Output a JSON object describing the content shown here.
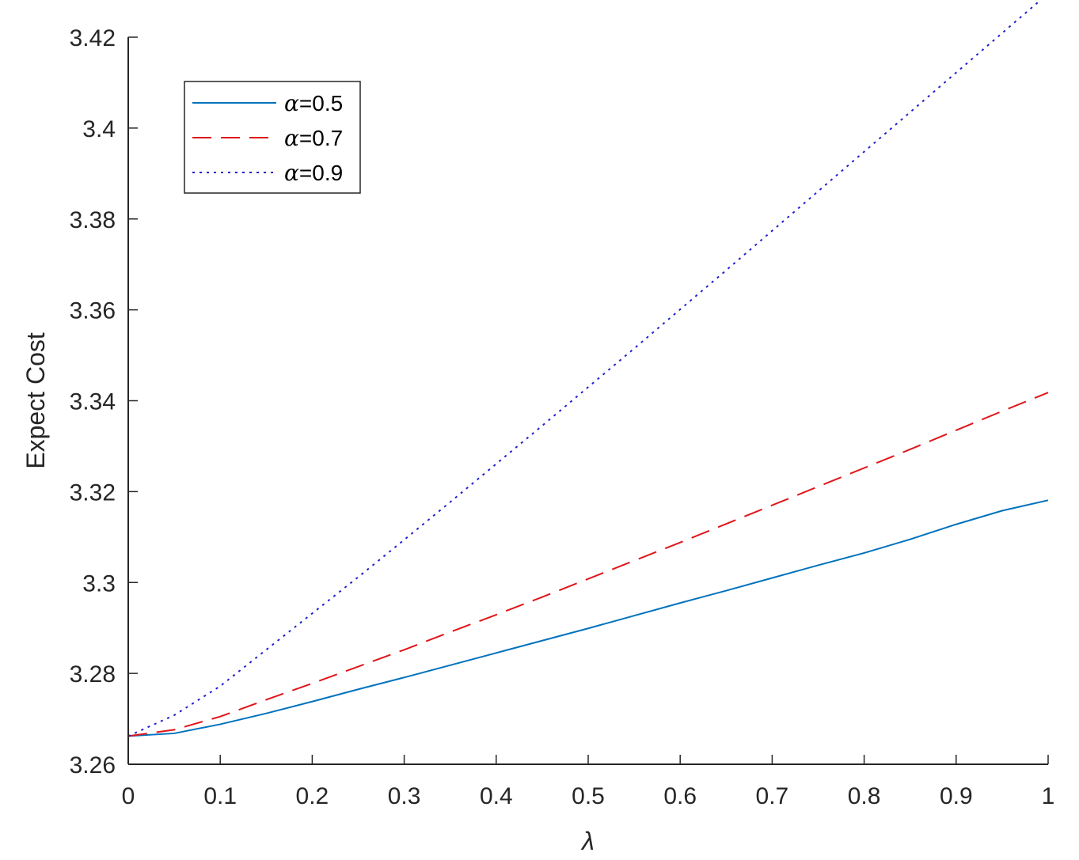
{
  "chart_data": {
    "type": "line",
    "title": "",
    "xlabel": "λ",
    "ylabel": "Expect Cost",
    "xlim": [
      0,
      1
    ],
    "ylim": [
      3.26,
      3.42
    ],
    "xticks": [
      0,
      0.1,
      0.2,
      0.3,
      0.4,
      0.5,
      0.6,
      0.7,
      0.8,
      0.9,
      1
    ],
    "xtick_labels": [
      "0",
      "0.1",
      "0.2",
      "0.3",
      "0.4",
      "0.5",
      "0.6",
      "0.7",
      "0.8",
      "0.9",
      "1"
    ],
    "yticks": [
      3.26,
      3.28,
      3.3,
      3.32,
      3.34,
      3.36,
      3.38,
      3.4,
      3.42
    ],
    "ytick_labels": [
      "3.26",
      "3.28",
      "3.3",
      "3.32",
      "3.34",
      "3.36",
      "3.38",
      "3.4",
      "3.42"
    ],
    "grid": false,
    "legend_position": "top-left",
    "x": [
      0,
      0.05,
      0.1,
      0.15,
      0.2,
      0.25,
      0.3,
      0.35,
      0.4,
      0.45,
      0.5,
      0.55,
      0.6,
      0.65,
      0.7,
      0.75,
      0.8,
      0.85,
      0.9,
      0.95,
      1
    ],
    "series": [
      {
        "name": "α=0.5",
        "legend_symbol": "α",
        "legend_value": "=0.5",
        "color": "#0072BD",
        "style": "solid",
        "values": [
          3.2662,
          3.2668,
          3.2688,
          3.2712,
          3.2738,
          3.2765,
          3.2791,
          3.2818,
          3.2845,
          3.2872,
          3.2899,
          3.2927,
          3.2955,
          3.2982,
          3.301,
          3.3038,
          3.3065,
          3.3095,
          3.3128,
          3.3158,
          3.3181
        ]
      },
      {
        "name": "α=0.7",
        "legend_symbol": "α",
        "legend_value": "=0.7",
        "color": "#E0161A",
        "style": "dashed",
        "values": [
          3.2662,
          3.2676,
          3.2705,
          3.2742,
          3.2778,
          3.2815,
          3.2852,
          3.2891,
          3.2929,
          3.2968,
          3.3008,
          3.3048,
          3.3088,
          3.3129,
          3.317,
          3.3211,
          3.3252,
          3.3293,
          3.3335,
          3.3377,
          3.3418
        ]
      },
      {
        "name": "α=0.9",
        "legend_symbol": "α",
        "legend_value": "=0.9",
        "color": "#1F1FD0",
        "style": "dotted",
        "values": [
          3.2662,
          3.2708,
          3.2772,
          3.2852,
          3.2932,
          3.3012,
          3.3094,
          3.3177,
          3.3261,
          3.3345,
          3.343,
          3.3515,
          3.3601,
          3.3687,
          3.3774,
          3.3861,
          3.3948,
          3.4035,
          3.4122,
          3.4209,
          3.4296
        ]
      }
    ]
  }
}
